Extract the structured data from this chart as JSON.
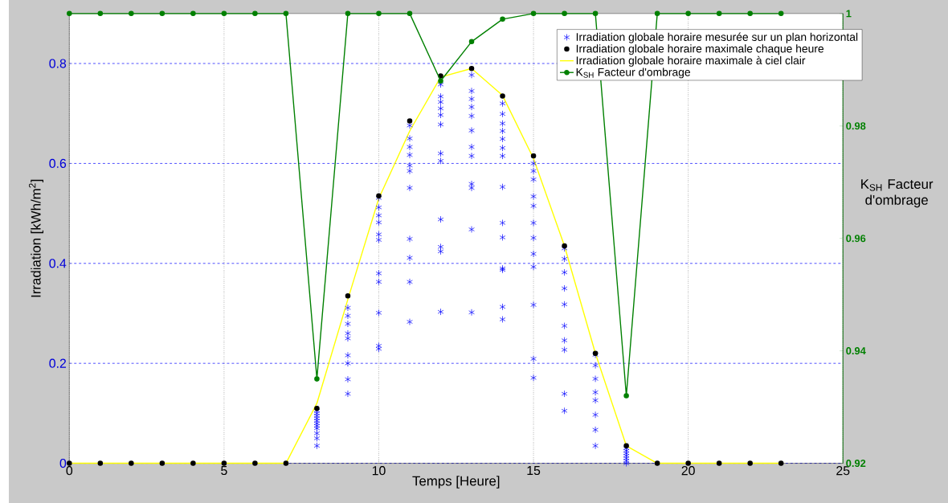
{
  "chart_data": {
    "type": "scatter",
    "xlabel": "Temps [Heure]",
    "ylabel": "Irradiation [kWh/m$^{2}$]",
    "y2label": "K$_{SH}$ Facteur d'ombrage",
    "xlim": [
      0,
      25
    ],
    "xticks": [
      0,
      5,
      10,
      15,
      20,
      25
    ],
    "ylim": [
      0,
      0.9
    ],
    "yticks": [
      0,
      0.2,
      0.4,
      0.6,
      0.8
    ],
    "y2lim": [
      0.92,
      1
    ],
    "y2ticks": [
      0.92,
      0.94,
      0.96,
      0.98,
      1
    ],
    "grid": true,
    "legend": "top right",
    "series": [
      {
        "name": "Irradiation globale horaire mesurée sur un plan horizontal",
        "marker": "cross",
        "color": "#0000ff",
        "x": [
          8,
          8,
          8,
          8,
          8,
          8,
          8,
          8,
          8,
          8,
          8,
          9,
          9,
          9,
          9,
          9,
          9,
          9,
          9,
          9,
          10,
          10,
          10,
          10,
          10,
          10,
          10,
          10,
          10,
          10,
          10,
          11,
          11,
          11,
          11,
          11,
          11,
          11,
          11,
          11,
          11,
          11,
          12,
          12,
          12,
          12,
          12,
          12,
          12,
          12,
          12,
          12,
          12,
          12,
          13,
          13,
          13,
          13,
          13,
          13,
          13,
          13,
          13,
          13,
          13,
          13,
          14,
          14,
          14,
          14,
          14,
          14,
          14,
          14,
          14,
          14,
          14,
          14,
          14,
          14,
          15,
          15,
          15,
          15,
          15,
          15,
          15,
          15,
          15,
          15,
          15,
          15,
          16,
          16,
          16,
          16,
          16,
          16,
          16,
          16,
          16,
          16,
          17,
          17,
          17,
          17,
          17,
          17,
          17,
          17,
          18,
          18,
          18,
          18,
          18,
          18,
          18
        ],
        "values": [
          0.105,
          0.1,
          0.095,
          0.09,
          0.085,
          0.08,
          0.075,
          0.07,
          0.06,
          0.05,
          0.035,
          0.311,
          0.295,
          0.279,
          0.26,
          0.25,
          0.216,
          0.2,
          0.168,
          0.139,
          0.531,
          0.512,
          0.496,
          0.482,
          0.458,
          0.447,
          0.38,
          0.363,
          0.301,
          0.235,
          0.229,
          0.676,
          0.65,
          0.633,
          0.617,
          0.596,
          0.585,
          0.551,
          0.449,
          0.411,
          0.363,
          0.283,
          0.758,
          0.734,
          0.723,
          0.71,
          0.697,
          0.678,
          0.62,
          0.605,
          0.488,
          0.433,
          0.424,
          0.303,
          0.777,
          0.745,
          0.729,
          0.713,
          0.695,
          0.666,
          0.633,
          0.615,
          0.559,
          0.551,
          0.468,
          0.302,
          0.72,
          0.699,
          0.68,
          0.665,
          0.649,
          0.631,
          0.615,
          0.553,
          0.481,
          0.452,
          0.39,
          0.387,
          0.313,
          0.288,
          0.6,
          0.585,
          0.568,
          0.534,
          0.515,
          0.481,
          0.451,
          0.419,
          0.393,
          0.317,
          0.209,
          0.171,
          0.43,
          0.409,
          0.382,
          0.35,
          0.318,
          0.275,
          0.246,
          0.227,
          0.139,
          0.105,
          0.217,
          0.196,
          0.169,
          0.142,
          0.126,
          0.097,
          0.067,
          0.035,
          0.03,
          0.025,
          0.02,
          0.015,
          0.01,
          0.005,
          0
        ]
      },
      {
        "name": "Irradiation globale horaire maximale chaque heure",
        "marker": "circle",
        "color": "#000000",
        "x": [
          0,
          1,
          2,
          3,
          4,
          5,
          6,
          7,
          8,
          9,
          10,
          11,
          12,
          13,
          14,
          15,
          16,
          17,
          18,
          19,
          20,
          21,
          22,
          23
        ],
        "values": [
          0,
          0,
          0,
          0,
          0,
          0,
          0,
          0,
          0.11,
          0.335,
          0.535,
          0.685,
          0.775,
          0.79,
          0.735,
          0.615,
          0.435,
          0.22,
          0.035,
          0,
          0,
          0,
          0,
          0
        ]
      },
      {
        "name": "Irradiation globale horaire maximale à ciel clair",
        "type": "line",
        "marker": "none",
        "color": "#ffff00",
        "x": [
          0,
          1,
          2,
          3,
          4,
          5,
          6,
          7,
          8,
          9,
          10,
          11,
          12,
          13,
          14,
          15,
          16,
          17,
          18,
          19,
          20,
          21,
          22,
          23
        ],
        "values": [
          0,
          0,
          0,
          0,
          0,
          0,
          0,
          0,
          0.12,
          0.328,
          0.53,
          0.665,
          0.773,
          0.79,
          0.736,
          0.61,
          0.435,
          0.22,
          0.035,
          0,
          0,
          0,
          0,
          0
        ]
      },
      {
        "name": "K$_{SH}$  Facteur d'ombrage",
        "type": "line",
        "marker": "circle",
        "color": "#008000",
        "axis": "y2",
        "x": [
          0,
          1,
          2,
          3,
          4,
          5,
          6,
          7,
          8,
          9,
          10,
          11,
          12,
          13,
          14,
          15,
          16,
          17,
          18,
          19,
          20,
          21,
          22,
          23
        ],
        "values": [
          1,
          1,
          1,
          1,
          1,
          1,
          1,
          1,
          0.935,
          1,
          1,
          1,
          0.988,
          0.995,
          0.999,
          1,
          1,
          1,
          0.932,
          1,
          1,
          1,
          1,
          1
        ]
      }
    ]
  }
}
